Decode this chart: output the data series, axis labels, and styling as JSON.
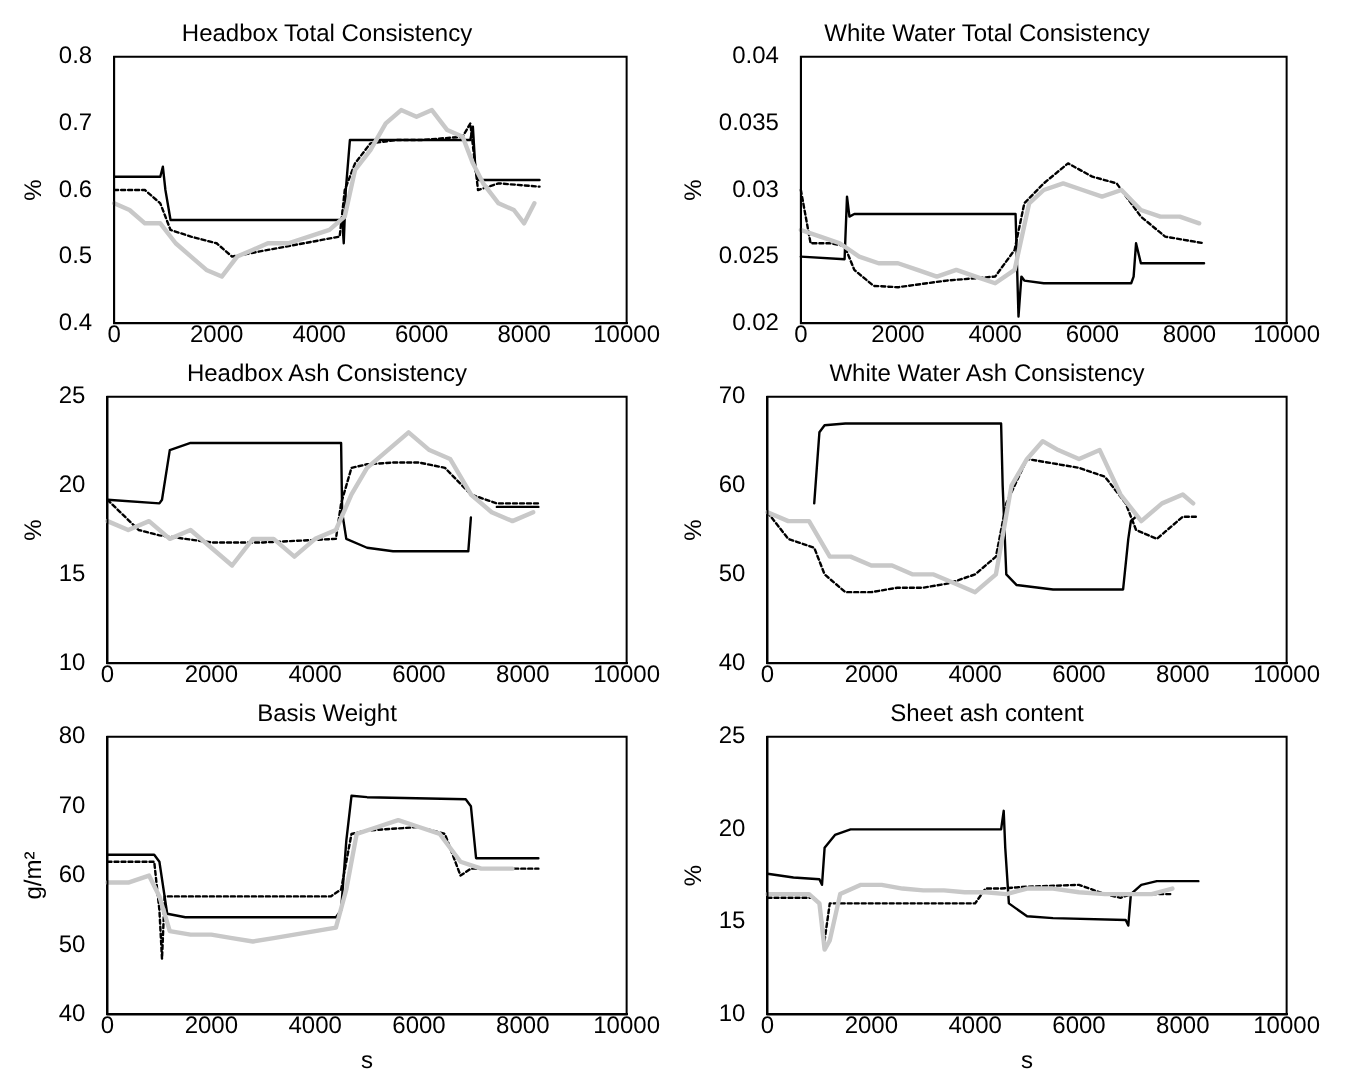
{
  "chart_data": [
    {
      "type": "line",
      "title": "Headbox Total Consistency",
      "ylabel": "%",
      "xlim": [
        0,
        10000
      ],
      "xticks": [
        0,
        2000,
        4000,
        6000,
        8000,
        10000
      ],
      "ylim": [
        0.4,
        0.8
      ],
      "yticks": [
        0.4,
        0.5,
        0.6,
        0.7,
        0.8
      ],
      "grid": false,
      "legend": false,
      "marker": "none",
      "series": [
        {
          "color": "#000000",
          "line_style": "solid",
          "x": [
            0,
            900,
            950,
            1000,
            1100,
            4450,
            4480,
            4520,
            4600,
            5000,
            6950,
            7000,
            7050,
            7100,
            8300
          ],
          "values": [
            0.62,
            0.62,
            0.635,
            0.6,
            0.555,
            0.555,
            0.52,
            0.6,
            0.675,
            0.675,
            0.675,
            0.695,
            0.63,
            0.615,
            0.615
          ]
        },
        {
          "color": "#000000",
          "line_style": "dotted",
          "x": [
            0,
            600,
            900,
            1100,
            1500,
            2000,
            2300,
            3000,
            4400,
            4500,
            4700,
            5000,
            5500,
            6000,
            6800,
            6950,
            7100,
            7500,
            8300
          ],
          "values": [
            0.6,
            0.6,
            0.58,
            0.54,
            0.53,
            0.52,
            0.5,
            0.51,
            0.53,
            0.6,
            0.64,
            0.67,
            0.675,
            0.675,
            0.68,
            0.7,
            0.6,
            0.61,
            0.605
          ]
        },
        {
          "color": "#c8c8c8",
          "line_style": "solid",
          "x": [
            0,
            300,
            600,
            900,
            1200,
            1500,
            1800,
            2100,
            2400,
            2700,
            3000,
            3400,
            3800,
            4200,
            4500,
            4700,
            5000,
            5300,
            5600,
            5900,
            6200,
            6500,
            6800,
            7000,
            7200,
            7500,
            7800,
            8000,
            8200
          ],
          "values": [
            0.58,
            0.57,
            0.55,
            0.55,
            0.52,
            0.5,
            0.48,
            0.47,
            0.5,
            0.51,
            0.52,
            0.52,
            0.53,
            0.54,
            0.56,
            0.63,
            0.66,
            0.7,
            0.72,
            0.71,
            0.72,
            0.69,
            0.68,
            0.64,
            0.61,
            0.58,
            0.57,
            0.55,
            0.58
          ]
        }
      ]
    },
    {
      "type": "line",
      "title": "White Water Total Consistency",
      "ylabel": "%",
      "xlim": [
        0,
        10000
      ],
      "xticks": [
        0,
        2000,
        4000,
        6000,
        8000,
        10000
      ],
      "ylim": [
        0.02,
        0.04
      ],
      "yticks": [
        0.02,
        0.025,
        0.03,
        0.035,
        0.04
      ],
      "grid": false,
      "legend": false,
      "marker": "none",
      "series": [
        {
          "color": "#000000",
          "line_style": "solid",
          "x": [
            0,
            900,
            950,
            1000,
            1100,
            4420,
            4480,
            4540,
            4600,
            5000,
            6800,
            6850,
            6900,
            7000,
            8300
          ],
          "values": [
            0.025,
            0.0248,
            0.0295,
            0.028,
            0.0282,
            0.0282,
            0.0205,
            0.0235,
            0.0232,
            0.023,
            0.023,
            0.0235,
            0.026,
            0.0245,
            0.0245
          ]
        },
        {
          "color": "#000000",
          "line_style": "dotted",
          "x": [
            0,
            200,
            600,
            900,
            1100,
            1500,
            2000,
            3000,
            4000,
            4400,
            4600,
            5000,
            5500,
            6000,
            6500,
            7000,
            7500,
            8300
          ],
          "values": [
            0.03,
            0.026,
            0.026,
            0.0258,
            0.024,
            0.0228,
            0.0227,
            0.0232,
            0.0235,
            0.0255,
            0.029,
            0.0305,
            0.032,
            0.031,
            0.0305,
            0.028,
            0.0265,
            0.026
          ]
        },
        {
          "color": "#c8c8c8",
          "line_style": "solid",
          "x": [
            0,
            400,
            800,
            1200,
            1600,
            2000,
            2400,
            2800,
            3200,
            3600,
            4000,
            4400,
            4700,
            5000,
            5400,
            5800,
            6200,
            6600,
            7000,
            7400,
            7800,
            8200
          ],
          "values": [
            0.027,
            0.0265,
            0.026,
            0.025,
            0.0245,
            0.0245,
            0.024,
            0.0235,
            0.024,
            0.0235,
            0.023,
            0.024,
            0.029,
            0.03,
            0.0305,
            0.03,
            0.0295,
            0.03,
            0.0285,
            0.028,
            0.028,
            0.0275
          ]
        }
      ]
    },
    {
      "type": "line",
      "title": "Headbox Ash Consistency",
      "ylabel": "%",
      "xlim": [
        0,
        10000
      ],
      "xticks": [
        0,
        2000,
        4000,
        6000,
        8000,
        10000
      ],
      "ylim": [
        10,
        25
      ],
      "yticks": [
        10,
        15,
        20,
        25
      ],
      "grid": false,
      "legend": false,
      "marker": "none",
      "series": [
        {
          "color": "#000000",
          "line_style": "solid",
          "x": [
            0,
            1000,
            1050,
            1200,
            1600,
            4500,
            4520,
            4600,
            5000,
            5500,
            6950,
            7000,
            7250,
            7500,
            8300
          ],
          "values": [
            19.2,
            19,
            19.2,
            22,
            22.4,
            22.4,
            18.5,
            17,
            16.5,
            16.3,
            16.3,
            18.2,
            null,
            18.8,
            18.8
          ]
        },
        {
          "color": "#000000",
          "line_style": "dotted",
          "x": [
            0,
            600,
            1000,
            1500,
            2000,
            3000,
            4400,
            4500,
            4700,
            5000,
            5500,
            6000,
            6500,
            7000,
            7500,
            8300
          ],
          "values": [
            19.2,
            17.5,
            17.2,
            17,
            16.8,
            16.8,
            17,
            19,
            21,
            21.2,
            21.3,
            21.3,
            21,
            19.5,
            19,
            19
          ]
        },
        {
          "color": "#c8c8c8",
          "line_style": "solid",
          "x": [
            0,
            400,
            800,
            1200,
            1600,
            2000,
            2400,
            2800,
            3200,
            3600,
            4000,
            4400,
            4700,
            5000,
            5400,
            5800,
            6200,
            6600,
            7000,
            7400,
            7800,
            8200
          ],
          "values": [
            18,
            17.5,
            18,
            17,
            17.5,
            16.5,
            15.5,
            17,
            17,
            16,
            17,
            17.5,
            19.5,
            21,
            22,
            23,
            22,
            21.5,
            19.5,
            18.5,
            18,
            18.5
          ]
        }
      ]
    },
    {
      "type": "line",
      "title": "White Water Ash Consistency",
      "ylabel": "%",
      "xlim": [
        0,
        10000
      ],
      "xticks": [
        0,
        2000,
        4000,
        6000,
        8000,
        10000
      ],
      "ylim": [
        40,
        70
      ],
      "yticks": [
        40,
        50,
        60,
        70
      ],
      "grid": false,
      "legend": false,
      "marker": "none",
      "series": [
        {
          "color": "#000000",
          "line_style": "solid",
          "x": [
            900,
            950,
            1000,
            1100,
            1500,
            4500,
            4530,
            4600,
            4800,
            5500,
            6850,
            6950,
            7000,
            7100
          ],
          "values": [
            58,
            62,
            66,
            66.8,
            67,
            67,
            60,
            50,
            48.8,
            48.3,
            48.3,
            54,
            56,
            56.5
          ]
        },
        {
          "color": "#000000",
          "line_style": "dotted",
          "x": [
            0,
            400,
            900,
            1100,
            1500,
            2000,
            2500,
            3000,
            3500,
            4000,
            4400,
            4600,
            5000,
            5500,
            6000,
            6500,
            6900,
            7100,
            7500,
            8000,
            8300
          ],
          "values": [
            57,
            54,
            53,
            50,
            48,
            48,
            48.5,
            48.5,
            49,
            50,
            52,
            58,
            63,
            62.5,
            62,
            61,
            58,
            55,
            54,
            56.5,
            56.5
          ]
        },
        {
          "color": "#c8c8c8",
          "line_style": "solid",
          "x": [
            0,
            400,
            800,
            1200,
            1600,
            2000,
            2400,
            2800,
            3200,
            3600,
            4000,
            4400,
            4700,
            5000,
            5300,
            5600,
            6000,
            6400,
            6800,
            7200,
            7600,
            8000,
            8200
          ],
          "values": [
            57,
            56,
            56,
            52,
            52,
            51,
            51,
            50,
            50,
            49,
            48,
            50,
            60,
            63,
            65,
            64,
            63,
            64,
            59,
            56,
            58,
            59,
            58
          ]
        }
      ]
    },
    {
      "type": "line",
      "title": "Basis Weight",
      "xlabel": "s",
      "ylabel": "g/m²",
      "xlim": [
        0,
        10000
      ],
      "xticks": [
        0,
        2000,
        4000,
        6000,
        8000,
        10000
      ],
      "ylim": [
        40,
        80
      ],
      "yticks": [
        40,
        50,
        60,
        70,
        80
      ],
      "grid": false,
      "legend": false,
      "marker": "none",
      "series": [
        {
          "color": "#000000",
          "line_style": "solid",
          "x": [
            0,
            900,
            1000,
            1150,
            1500,
            4400,
            4500,
            4600,
            4700,
            5000,
            6900,
            7000,
            7100,
            8300
          ],
          "values": [
            63,
            63,
            62,
            54.5,
            54,
            54,
            55,
            65,
            71.5,
            71.3,
            71,
            70,
            62.5,
            62.5
          ]
        },
        {
          "color": "#000000",
          "line_style": "dotted",
          "x": [
            0,
            900,
            1000,
            1050,
            1100,
            1200,
            2000,
            3000,
            4300,
            4500,
            4700,
            5000,
            6000,
            6500,
            6700,
            6800,
            7000,
            8300
          ],
          "values": [
            62,
            62,
            55,
            48,
            57,
            57,
            57,
            57,
            57,
            58,
            66,
            66.5,
            67,
            66,
            62,
            60,
            61,
            61
          ]
        },
        {
          "color": "#c8c8c8",
          "line_style": "solid",
          "x": [
            0,
            400,
            800,
            1000,
            1200,
            1600,
            2000,
            2400,
            2800,
            3200,
            3600,
            4000,
            4400,
            4600,
            4800,
            5200,
            5600,
            6000,
            6400,
            6800,
            7200,
            7600,
            7800
          ],
          "values": [
            59,
            59,
            60,
            57,
            52,
            51.5,
            51.5,
            51,
            50.5,
            51,
            51.5,
            52,
            52.5,
            58,
            66,
            67,
            68,
            67,
            66,
            62,
            61,
            61,
            61
          ]
        }
      ]
    },
    {
      "type": "line",
      "title": "Sheet ash content",
      "xlabel": "s",
      "ylabel": "%",
      "xlim": [
        0,
        10000
      ],
      "xticks": [
        0,
        2000,
        4000,
        6000,
        8000,
        10000
      ],
      "ylim": [
        10,
        25
      ],
      "yticks": [
        10,
        15,
        20,
        25
      ],
      "grid": false,
      "legend": false,
      "marker": "none",
      "series": [
        {
          "color": "#000000",
          "line_style": "solid",
          "x": [
            0,
            500,
            1000,
            1050,
            1100,
            1300,
            1600,
            2000,
            4500,
            4550,
            4580,
            4650,
            5000,
            5500,
            6900,
            6950,
            7000,
            7200,
            7500,
            8300
          ],
          "values": [
            17.6,
            17.4,
            17.3,
            17,
            19,
            19.7,
            20,
            20,
            20,
            21,
            19,
            16,
            15.3,
            15.2,
            15.1,
            14.8,
            16.5,
            17,
            17.2,
            17.2
          ]
        },
        {
          "color": "#000000",
          "line_style": "dotted",
          "x": [
            0,
            900,
            1000,
            1100,
            1200,
            2000,
            3000,
            4000,
            4200,
            4500,
            5000,
            6000,
            6500,
            6800,
            7000,
            7500,
            7800
          ],
          "values": [
            16.3,
            16.3,
            16,
            14,
            16,
            16,
            16,
            16,
            16.8,
            16.8,
            16.9,
            17,
            16.5,
            16.3,
            16.5,
            16.5,
            16.5
          ]
        },
        {
          "color": "#c8c8c8",
          "line_style": "solid",
          "x": [
            0,
            400,
            800,
            1000,
            1100,
            1200,
            1400,
            1800,
            2200,
            2600,
            3000,
            3400,
            3800,
            4200,
            4600,
            5000,
            5500,
            6000,
            6500,
            7000,
            7400,
            7800
          ],
          "values": [
            16.5,
            16.5,
            16.5,
            16,
            13.5,
            14,
            16.5,
            17,
            17,
            16.8,
            16.7,
            16.7,
            16.6,
            16.6,
            16.5,
            16.8,
            16.8,
            16.6,
            16.5,
            16.5,
            16.5,
            16.8
          ]
        }
      ]
    }
  ]
}
